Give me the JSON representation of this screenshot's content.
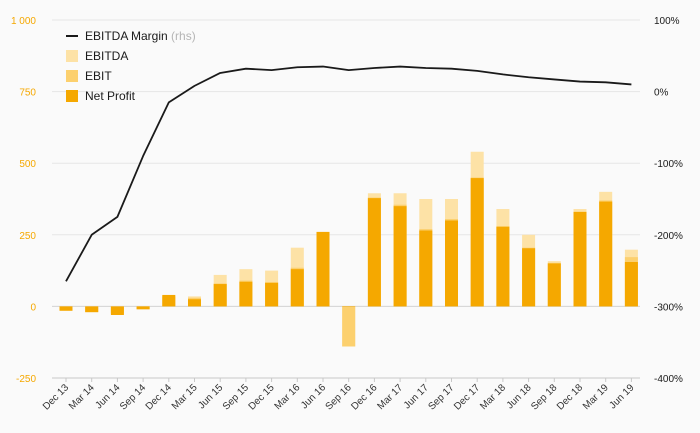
{
  "chart_data": {
    "type": "bar",
    "categories": [
      "Dec 13",
      "Mar 14",
      "Jun 14",
      "Sep 14",
      "Dec 14",
      "Mar 15",
      "Jun 15",
      "Sep 15",
      "Dec 15",
      "Mar 16",
      "Jun 16",
      "Sep 16",
      "Dec 16",
      "Mar 17",
      "Jun 17",
      "Sep 17",
      "Dec 17",
      "Mar 18",
      "Jun 18",
      "Sep 18",
      "Dec 18",
      "Mar 19",
      "Jun 19"
    ],
    "series": [
      {
        "name": "EBITDA",
        "type": "bar",
        "axis": "left",
        "color": "#fde2a6",
        "values": [
          -15,
          -20,
          -25,
          -10,
          35,
          35,
          110,
          130,
          125,
          205,
          260,
          -140,
          395,
          395,
          375,
          375,
          540,
          340,
          250,
          158,
          340,
          400,
          198
        ]
      },
      {
        "name": "EBIT",
        "type": "bar",
        "axis": "left",
        "color": "#fcd06e",
        "values": [
          -15,
          -20,
          -25,
          -10,
          35,
          30,
          80,
          90,
          85,
          135,
          260,
          -140,
          380,
          355,
          270,
          305,
          450,
          280,
          205,
          152,
          330,
          370,
          172
        ]
      },
      {
        "name": "Net Profit",
        "type": "bar",
        "axis": "left",
        "color": "#f5a800",
        "values": [
          -15,
          -20,
          -30,
          -10,
          40,
          25,
          78,
          86,
          82,
          130,
          260,
          0,
          378,
          350,
          265,
          300,
          448,
          278,
          203,
          150,
          330,
          366,
          155
        ]
      },
      {
        "name": "EBITDA Margin",
        "name_suffix": "(rhs)",
        "type": "line",
        "axis": "right",
        "color": "#1a1a1a",
        "values": [
          -265,
          -200,
          -175,
          -90,
          -15,
          8,
          26,
          32,
          30,
          34,
          35,
          30,
          33,
          35,
          33,
          32,
          29,
          24,
          20,
          17,
          14,
          13,
          10
        ]
      }
    ],
    "y_left": {
      "ticks": [
        -250,
        0,
        250,
        500,
        750,
        1000
      ],
      "tick_labels": [
        "-250",
        "0",
        "250",
        "500",
        "750",
        "1 000"
      ],
      "range": [
        -250,
        1000
      ],
      "color": "#f5a800"
    },
    "y_right": {
      "ticks": [
        -400,
        -300,
        -200,
        -100,
        0,
        100
      ],
      "tick_labels": [
        "-400%",
        "-300%",
        "-200%",
        "-100%",
        "0%",
        "100%"
      ],
      "range": [
        -400,
        100
      ]
    },
    "legend_order": [
      "EBITDA Margin",
      "EBITDA",
      "EBIT",
      "Net Profit"
    ],
    "legend_position": "top-left",
    "grid": true
  }
}
